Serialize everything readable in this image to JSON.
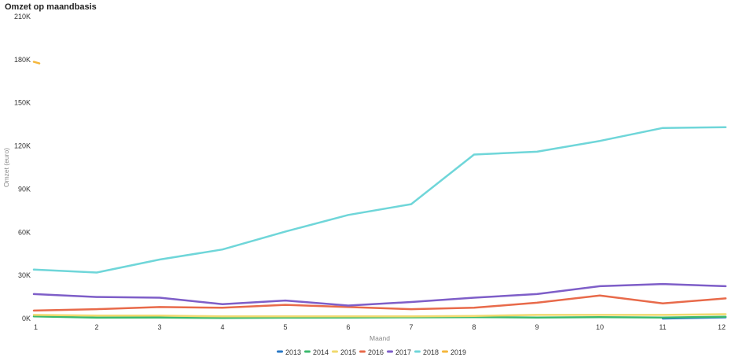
{
  "chart_data": {
    "type": "line",
    "title": "Omzet op maandbasis",
    "xlabel": "Maand",
    "ylabel": "Omzet (euro)",
    "x": [
      1,
      2,
      3,
      4,
      5,
      6,
      7,
      8,
      9,
      10,
      11,
      12
    ],
    "ylim": [
      0,
      210000
    ],
    "yticks": [
      0,
      30000,
      60000,
      90000,
      120000,
      150000,
      180000,
      210000
    ],
    "ytick_labels": [
      "0K",
      "30K",
      "60K",
      "90K",
      "120K",
      "150K",
      "180K",
      "210K"
    ],
    "grid": false,
    "legend_position": "bottom",
    "series": [
      {
        "name": "2013",
        "color": "#2a78c5",
        "values": [
          null,
          null,
          null,
          null,
          null,
          null,
          null,
          null,
          null,
          null,
          0,
          800
        ]
      },
      {
        "name": "2014",
        "color": "#3cba6e",
        "values": [
          1500,
          600,
          700,
          400,
          600,
          700,
          800,
          1000,
          700,
          1000,
          700,
          1200
        ]
      },
      {
        "name": "2015",
        "color": "#f0d96e",
        "values": [
          2500,
          2000,
          2000,
          1500,
          1500,
          1500,
          1500,
          1800,
          2500,
          2500,
          2500,
          3000
        ]
      },
      {
        "name": "2016",
        "color": "#e86a4a",
        "values": [
          5500,
          6500,
          8000,
          7500,
          9500,
          8000,
          6500,
          7500,
          11000,
          16000,
          10500,
          14000
        ]
      },
      {
        "name": "2017",
        "color": "#7e5ec8",
        "values": [
          17000,
          15000,
          14500,
          10000,
          12500,
          9000,
          11500,
          14500,
          17000,
          22500,
          24000,
          22500
        ]
      },
      {
        "name": "2018",
        "color": "#6fd6d9",
        "values": [
          34000,
          32000,
          41000,
          48000,
          60500,
          72000,
          79500,
          114000,
          116000,
          123500,
          132500,
          133000
        ]
      },
      {
        "name": "2019",
        "color": "#f5b73c",
        "values": [
          178500,
          null,
          null,
          null,
          null,
          null,
          null,
          null,
          null,
          null,
          null,
          null
        ]
      }
    ]
  }
}
